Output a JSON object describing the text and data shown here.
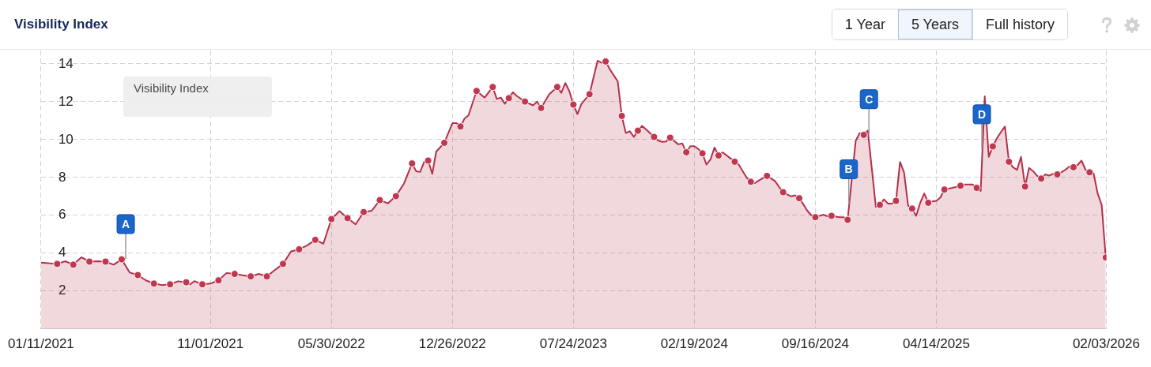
{
  "chart_data": {
    "type": "area",
    "title": "Visibility Index",
    "xlim": [
      "2021-01-11",
      "2026-02-03"
    ],
    "xticks": [
      {
        "value": "2021-01-11",
        "label": "01/11/2021"
      },
      {
        "value": "2021-11-01",
        "label": "11/01/2021"
      },
      {
        "value": "2022-05-30",
        "label": "05/30/2022"
      },
      {
        "value": "2022-12-26",
        "label": "12/26/2022"
      },
      {
        "value": "2023-07-24",
        "label": "07/24/2023"
      },
      {
        "value": "2024-02-19",
        "label": "02/19/2024"
      },
      {
        "value": "2024-09-16",
        "label": "09/16/2024"
      },
      {
        "value": "2025-04-14",
        "label": "04/14/2025"
      },
      {
        "value": "2026-02-03",
        "label": "02/03/2026"
      }
    ],
    "ylim": [
      0,
      14.7
    ],
    "yticks": [
      2,
      4,
      6,
      8,
      10,
      12,
      14
    ],
    "grid": true,
    "series": [
      {
        "type": "area",
        "color": "#b3304b",
        "x": [
          "2021-01-11",
          "2021-02-08",
          "2021-02-22",
          "2021-03-08",
          "2021-03-22",
          "2021-04-05",
          "2021-04-19",
          "2021-05-03",
          "2021-05-17",
          "2021-05-31",
          "2021-06-14",
          "2021-06-28",
          "2021-07-12",
          "2021-07-26",
          "2021-08-09",
          "2021-08-23",
          "2021-09-06",
          "2021-09-20",
          "2021-09-27",
          "2021-10-04",
          "2021-10-18",
          "2021-11-01",
          "2021-11-15",
          "2021-11-29",
          "2021-12-13",
          "2021-12-27",
          "2022-01-10",
          "2022-01-24",
          "2022-02-07",
          "2022-02-21",
          "2022-03-07",
          "2022-03-21",
          "2022-04-04",
          "2022-04-18",
          "2022-05-02",
          "2022-05-16",
          "2022-05-30",
          "2022-06-13",
          "2022-06-27",
          "2022-07-11",
          "2022-07-25",
          "2022-08-08",
          "2022-08-22",
          "2022-09-05",
          "2022-09-19",
          "2022-10-03",
          "2022-10-17",
          "2022-10-24",
          "2022-10-31",
          "2022-11-07",
          "2022-11-14",
          "2022-11-21",
          "2022-11-28",
          "2022-12-12",
          "2022-12-26",
          "2023-01-02",
          "2023-01-09",
          "2023-01-16",
          "2023-01-23",
          "2023-02-06",
          "2023-02-20",
          "2023-03-06",
          "2023-03-13",
          "2023-03-20",
          "2023-03-27",
          "2023-04-03",
          "2023-04-10",
          "2023-04-17",
          "2023-05-01",
          "2023-05-15",
          "2023-05-22",
          "2023-05-29",
          "2023-06-12",
          "2023-06-26",
          "2023-07-03",
          "2023-07-10",
          "2023-07-17",
          "2023-07-24",
          "2023-07-31",
          "2023-08-07",
          "2023-08-21",
          "2023-09-04",
          "2023-09-11",
          "2023-09-18",
          "2023-09-25",
          "2023-10-02",
          "2023-10-09",
          "2023-10-16",
          "2023-10-23",
          "2023-10-30",
          "2023-11-06",
          "2023-11-13",
          "2023-11-20",
          "2023-11-27",
          "2023-12-11",
          "2023-12-18",
          "2023-12-25",
          "2024-01-01",
          "2024-01-08",
          "2024-01-22",
          "2024-01-29",
          "2024-02-05",
          "2024-02-12",
          "2024-02-19",
          "2024-02-26",
          "2024-03-04",
          "2024-03-11",
          "2024-03-18",
          "2024-03-25",
          "2024-04-01",
          "2024-04-08",
          "2024-04-22",
          "2024-04-29",
          "2024-05-06",
          "2024-05-13",
          "2024-05-20",
          "2024-05-27",
          "2024-06-03",
          "2024-06-10",
          "2024-06-24",
          "2024-07-08",
          "2024-07-15",
          "2024-07-22",
          "2024-07-29",
          "2024-08-05",
          "2024-08-12",
          "2024-08-19",
          "2024-08-26",
          "2024-09-02",
          "2024-09-09",
          "2024-09-16",
          "2024-09-30",
          "2024-10-07",
          "2024-10-14",
          "2024-10-28",
          "2024-11-04",
          "2024-11-11",
          "2024-11-18",
          "2024-11-25",
          "2024-12-02",
          "2024-12-09",
          "2024-12-16",
          "2024-12-23",
          "2024-12-30",
          "2025-01-06",
          "2025-01-13",
          "2025-01-20",
          "2025-01-27",
          "2025-02-03",
          "2025-02-10",
          "2025-02-17",
          "2025-02-24",
          "2025-03-03",
          "2025-03-10",
          "2025-03-17",
          "2025-03-24",
          "2025-03-31",
          "2025-04-07",
          "2025-04-14",
          "2025-04-21",
          "2025-04-28",
          "2025-05-12",
          "2025-05-26",
          "2025-06-02",
          "2025-06-09",
          "2025-06-16",
          "2025-06-23",
          "2025-06-30",
          "2025-07-07",
          "2025-07-14",
          "2025-07-21",
          "2025-07-28",
          "2025-08-04",
          "2025-08-11",
          "2025-08-18",
          "2025-08-25",
          "2025-09-01",
          "2025-09-08",
          "2025-09-15",
          "2025-09-22",
          "2025-09-29",
          "2025-10-06",
          "2025-10-13",
          "2025-10-20",
          "2025-10-27",
          "2025-11-03",
          "2025-11-10",
          "2025-11-17",
          "2025-11-24",
          "2025-12-01",
          "2025-12-08",
          "2025-12-15",
          "2025-12-22",
          "2025-12-29",
          "2026-01-05",
          "2026-01-12",
          "2026-01-19",
          "2026-01-26",
          "2026-02-02"
        ],
        "values": [
          3.5,
          3.43,
          3.57,
          3.39,
          3.78,
          3.55,
          3.57,
          3.55,
          3.39,
          3.67,
          2.97,
          2.84,
          2.56,
          2.39,
          2.31,
          2.35,
          2.51,
          2.46,
          2.35,
          2.52,
          2.35,
          2.39,
          2.56,
          2.95,
          2.9,
          2.83,
          2.77,
          2.9,
          2.77,
          3.11,
          3.43,
          4.09,
          4.2,
          4.41,
          4.7,
          4.5,
          5.8,
          6.22,
          5.85,
          5.52,
          6.17,
          6.24,
          6.8,
          6.63,
          7.01,
          7.68,
          8.74,
          8.33,
          8.29,
          8.82,
          8.89,
          8.19,
          9.37,
          9.83,
          10.87,
          10.87,
          10.69,
          11.11,
          11.29,
          12.57,
          12.22,
          12.78,
          12.15,
          12.22,
          11.9,
          12.19,
          12.5,
          12.3,
          12.01,
          11.81,
          12.01,
          11.67,
          12.39,
          12.78,
          12.47,
          12.99,
          12.56,
          11.85,
          11.35,
          11.89,
          12.4,
          14.17,
          14.06,
          14.13,
          13.73,
          13.4,
          13.08,
          11.25,
          10.35,
          10.44,
          10.14,
          10.47,
          10.72,
          10.55,
          10.14,
          9.95,
          9.88,
          9.9,
          10.1,
          9.75,
          9.8,
          9.33,
          9.65,
          9.65,
          9.5,
          9.27,
          8.68,
          8.96,
          9.58,
          9.16,
          9.33,
          9.0,
          8.83,
          8.68,
          8.33,
          7.98,
          7.77,
          7.7,
          7.84,
          8.08,
          7.81,
          7.5,
          7.22,
          7.1,
          7.0,
          7.05,
          6.9,
          6.59,
          6.24,
          6.0,
          5.9,
          6.03,
          5.95,
          5.97,
          5.9,
          5.9,
          5.76,
          7.84,
          9.93,
          10.35,
          10.25,
          10.48,
          8.47,
          6.45,
          6.55,
          6.84,
          6.62,
          6.62,
          6.76,
          8.82,
          8.26,
          6.51,
          6.35,
          5.97,
          6.66,
          7.15,
          6.66,
          6.73,
          6.76,
          6.94,
          7.36,
          7.45,
          7.56,
          7.63,
          7.63,
          7.63,
          7.45,
          7.29,
          12.29,
          9.09,
          9.64,
          10.07,
          10.39,
          10.69,
          8.83,
          8.54,
          8.4,
          9.09,
          7.52,
          8.5,
          8.33,
          8.08,
          7.94,
          8.16,
          8.1,
          8.19,
          8.16,
          8.27,
          8.41,
          8.58,
          8.54,
          8.65,
          8.89,
          8.4,
          8.27,
          8.21,
          7.15,
          6.55,
          3.77
        ]
      },
      {
        "type": "scatter",
        "color": "#c0384f",
        "marker": "circle",
        "x": [
          "2021-02-08",
          "2021-03-08",
          "2021-04-05",
          "2021-05-03",
          "2021-05-31",
          "2021-06-28",
          "2021-07-26",
          "2021-08-23",
          "2021-09-20",
          "2021-10-18",
          "2021-11-15",
          "2021-12-13",
          "2022-01-10",
          "2022-02-07",
          "2022-03-07",
          "2022-04-04",
          "2022-05-02",
          "2022-05-30",
          "2022-06-27",
          "2022-07-25",
          "2022-08-22",
          "2022-09-19",
          "2022-10-17",
          "2022-11-14",
          "2022-12-12",
          "2023-01-09",
          "2023-02-06",
          "2023-03-06",
          "2023-04-03",
          "2023-05-01",
          "2023-05-29",
          "2023-06-26",
          "2023-07-24",
          "2023-08-21",
          "2023-09-18",
          "2023-10-16",
          "2023-11-13",
          "2023-12-11",
          "2024-01-08",
          "2024-02-05",
          "2024-03-04",
          "2024-04-01",
          "2024-04-29",
          "2024-05-27",
          "2024-06-24",
          "2024-07-22",
          "2024-08-19",
          "2024-09-16",
          "2024-10-14",
          "2024-11-11",
          "2024-12-09",
          "2025-01-06",
          "2025-02-03",
          "2025-03-03",
          "2025-03-31",
          "2025-04-28",
          "2025-05-26",
          "2025-06-23",
          "2025-07-21",
          "2025-08-18",
          "2025-09-15",
          "2025-10-13",
          "2025-11-10",
          "2025-12-08",
          "2026-01-05",
          "2026-02-02"
        ],
        "values": [
          3.43,
          3.39,
          3.55,
          3.55,
          3.67,
          2.84,
          2.39,
          2.35,
          2.46,
          2.35,
          2.56,
          2.9,
          2.77,
          2.77,
          3.43,
          4.2,
          4.7,
          5.8,
          5.85,
          6.17,
          6.8,
          7.01,
          8.74,
          8.89,
          9.83,
          10.69,
          12.57,
          12.78,
          12.19,
          12.01,
          11.67,
          12.78,
          11.85,
          12.4,
          14.13,
          11.25,
          10.47,
          10.14,
          10.1,
          9.33,
          9.27,
          9.16,
          8.83,
          7.77,
          8.08,
          7.22,
          6.9,
          5.9,
          5.97,
          5.76,
          10.25,
          6.55,
          6.76,
          6.35,
          6.66,
          7.36,
          7.56,
          7.45,
          9.64,
          8.83,
          7.52,
          7.94,
          8.16,
          8.54,
          8.27,
          3.77
        ]
      }
    ],
    "annotations": [
      "1 Year",
      "5 Years",
      "Full history",
      "Visibility Index",
      {
        "text": "A",
        "x": "2021-06-07",
        "y": 3.7
      },
      {
        "text": "B",
        "x": "2024-11-13",
        "y": 6.6
      },
      {
        "text": "C",
        "x": "2024-12-18",
        "y": 10.3
      },
      {
        "text": "D",
        "x": "2025-07-02",
        "y": 9.5
      }
    ]
  }
}
